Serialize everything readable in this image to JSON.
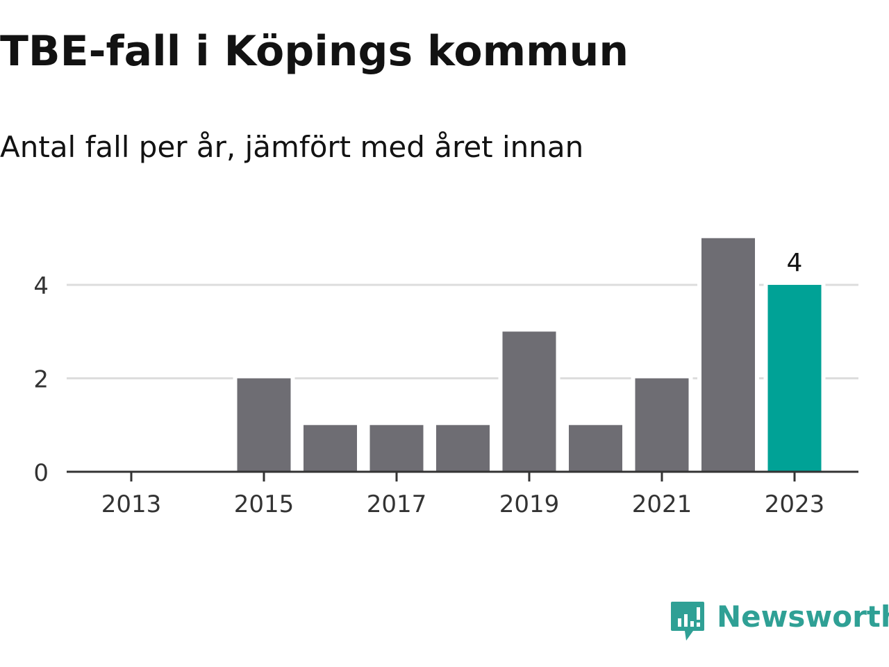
{
  "title": "TBE-fall i Köpings kommun",
  "subtitle": "Antal fall per år, jämfört med året innan",
  "brand": {
    "name": "Newsworthy",
    "icon": "newsworthy-logo-icon",
    "color": "#2fa095"
  },
  "colors": {
    "bar_default": "#6e6d73",
    "bar_highlight": "#00a296",
    "grid": "#dddddd",
    "axis": "#333333"
  },
  "chart_data": {
    "type": "bar",
    "categories": [
      "2013",
      "2014",
      "2015",
      "2016",
      "2017",
      "2018",
      "2019",
      "2020",
      "2021",
      "2022",
      "2023"
    ],
    "values": [
      0,
      0,
      2,
      1,
      1,
      1,
      3,
      1,
      2,
      5,
      4
    ],
    "x_tick_labels": [
      "2013",
      "2015",
      "2017",
      "2019",
      "2021",
      "2023"
    ],
    "y_ticks": [
      0,
      2,
      4
    ],
    "ylim": [
      0,
      5
    ],
    "highlight_category": "2023",
    "data_labels": [
      {
        "category": "2023",
        "text": "4"
      }
    ],
    "grid": true,
    "legend": "none",
    "xlabel": "",
    "ylabel": ""
  }
}
